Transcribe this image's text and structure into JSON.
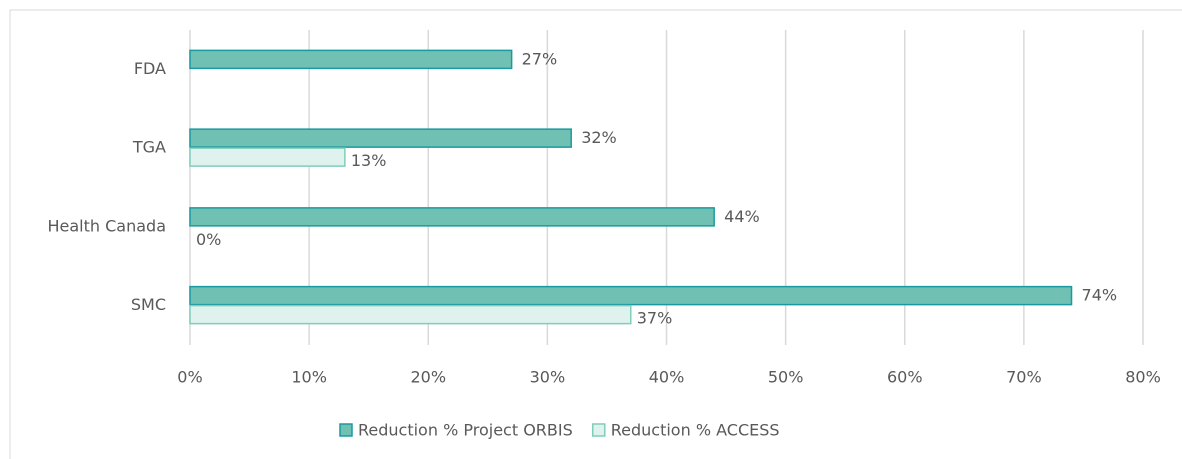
{
  "chart_data": {
    "type": "hbar",
    "categories": [
      "FDA",
      "TGA",
      "Health Canada",
      "SMC"
    ],
    "series": [
      {
        "name": "Reduction % Project ORBIS",
        "color": "#70c1b3",
        "stroke": "#1a9aa0",
        "values": [
          27,
          32,
          44,
          74
        ],
        "value_labels": [
          "27%",
          "32%",
          "44%",
          "74%"
        ]
      },
      {
        "name": "Reduction % ACCESS",
        "color": "#e0f2ee",
        "stroke": "#7fcdbb",
        "values": [
          null,
          13,
          0,
          37
        ],
        "value_labels": [
          null,
          "13%",
          "0%",
          "37%"
        ]
      }
    ],
    "xlim": [
      0,
      80
    ],
    "xticks": [
      {
        "value": 0,
        "label": "0%"
      },
      {
        "value": 10,
        "label": "10%"
      },
      {
        "value": 20,
        "label": "20%"
      },
      {
        "value": 30,
        "label": "30%"
      },
      {
        "value": 40,
        "label": "40%"
      },
      {
        "value": 50,
        "label": "50%"
      },
      {
        "value": 60,
        "label": "60%"
      },
      {
        "value": 70,
        "label": "70%"
      },
      {
        "value": 80,
        "label": "80%"
      }
    ],
    "grid": true,
    "legend": "bottom"
  }
}
